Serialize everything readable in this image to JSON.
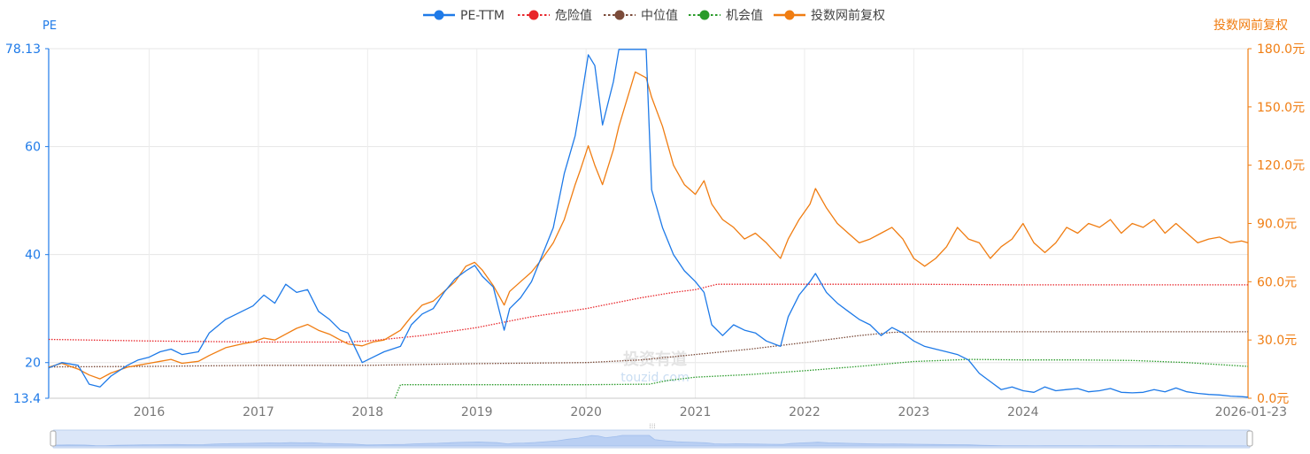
{
  "chart_data": {
    "type": "line",
    "title": "",
    "legend": {
      "placement": "top-center",
      "items": [
        {
          "name": "PE-TTM",
          "color": "#1e7ae8",
          "style": "solid"
        },
        {
          "name": "危险值",
          "color": "#e8262b",
          "style": "dotted"
        },
        {
          "name": "中位值",
          "color": "#7b4b3a",
          "style": "dotted"
        },
        {
          "name": "机会值",
          "color": "#2a9b2a",
          "style": "dotted"
        },
        {
          "name": "投数网前复权",
          "color": "#f07d12",
          "style": "solid"
        }
      ]
    },
    "y_left": {
      "label": "PE",
      "min": 13.4,
      "max": 78.13,
      "ticks": [
        {
          "value": 13.4,
          "label": "13.4"
        },
        {
          "value": 20,
          "label": "20"
        },
        {
          "value": 40,
          "label": "40"
        },
        {
          "value": 60,
          "label": "60"
        },
        {
          "value": 78.13,
          "label": "78.13"
        }
      ]
    },
    "y_right": {
      "label": "投数网前复权",
      "min": 0,
      "max": 180,
      "ticks": [
        {
          "value": 0,
          "label": "0.0元"
        },
        {
          "value": 30,
          "label": "30.0元"
        },
        {
          "value": 60,
          "label": "60.0元"
        },
        {
          "value": 90,
          "label": "90.0元"
        },
        {
          "value": 120,
          "label": "120.0元"
        },
        {
          "value": 150,
          "label": "150.0元"
        },
        {
          "value": 180,
          "label": "180.0元"
        }
      ]
    },
    "x_axis": {
      "min": 2015.08,
      "max": 2026.06,
      "ticks": [
        {
          "value": 2016,
          "label": "2016"
        },
        {
          "value": 2017,
          "label": "2017"
        },
        {
          "value": 2018,
          "label": "2018"
        },
        {
          "value": 2019,
          "label": "2019"
        },
        {
          "value": 2020,
          "label": "2020"
        },
        {
          "value": 2021,
          "label": "2021"
        },
        {
          "value": 2022,
          "label": "2022"
        },
        {
          "value": 2023,
          "label": "2023"
        },
        {
          "value": 2024,
          "label": "2024"
        },
        {
          "value": 2026.06,
          "label": "2026-01-23"
        }
      ]
    },
    "grid": true,
    "watermark": {
      "line1": "投资有道",
      "line2": "touzid.com"
    },
    "series": [
      {
        "name": "PE-TTM",
        "axis": "left",
        "x": [
          2015.08,
          2015.2,
          2015.35,
          2015.45,
          2015.55,
          2015.65,
          2015.8,
          2015.9,
          2016.0,
          2016.1,
          2016.2,
          2016.3,
          2016.45,
          2016.55,
          2016.7,
          2016.85,
          2016.95,
          2017.05,
          2017.15,
          2017.25,
          2017.35,
          2017.45,
          2017.55,
          2017.65,
          2017.75,
          2017.82,
          2017.95,
          2018.05,
          2018.15,
          2018.3,
          2018.4,
          2018.5,
          2018.6,
          2018.7,
          2018.8,
          2018.9,
          2018.98,
          2019.05,
          2019.15,
          2019.25,
          2019.3,
          2019.4,
          2019.5,
          2019.6,
          2019.7,
          2019.8,
          2019.9,
          2019.95,
          2020.02,
          2020.08,
          2020.15,
          2020.25,
          2020.3,
          2020.38,
          2020.45,
          2020.55,
          2020.6,
          2020.7,
          2020.8,
          2020.9,
          2021.0,
          2021.08,
          2021.15,
          2021.25,
          2021.35,
          2021.45,
          2021.55,
          2021.65,
          2021.78,
          2021.85,
          2021.95,
          2022.05,
          2022.1,
          2022.2,
          2022.3,
          2022.4,
          2022.5,
          2022.6,
          2022.7,
          2022.8,
          2022.9,
          2023.0,
          2023.1,
          2023.2,
          2023.3,
          2023.4,
          2023.5,
          2023.6,
          2023.7,
          2023.8,
          2023.9,
          2024.0,
          2024.1,
          2024.2,
          2024.3,
          2024.4,
          2024.5,
          2024.6,
          2024.7,
          2024.8,
          2024.9,
          2025.0,
          2025.1,
          2025.2,
          2025.3,
          2025.4,
          2025.5,
          2025.6,
          2025.7,
          2025.8,
          2025.9,
          2026.0,
          2026.06
        ],
        "y": [
          19.0,
          20.0,
          19.5,
          16.0,
          15.5,
          17.5,
          19.5,
          20.5,
          21.0,
          22.0,
          22.5,
          21.5,
          22.0,
          25.5,
          28.0,
          29.5,
          30.5,
          32.5,
          31.0,
          34.5,
          33.0,
          33.5,
          29.5,
          28.0,
          26.0,
          25.5,
          20.0,
          21.0,
          22.0,
          23.0,
          27.0,
          29.0,
          30.0,
          33.0,
          35.5,
          37.0,
          38.0,
          36.0,
          34.0,
          26.0,
          30.0,
          32.0,
          35.0,
          40.0,
          45.0,
          55.0,
          62.0,
          68.0,
          77.0,
          75.0,
          64.0,
          72.0,
          78.0,
          78.0,
          78.0,
          78.0,
          52.0,
          45.0,
          40.0,
          37.0,
          35.0,
          33.0,
          27.0,
          25.0,
          27.0,
          26.0,
          25.5,
          24.0,
          23.0,
          28.5,
          32.5,
          35.0,
          36.5,
          33.0,
          31.0,
          29.5,
          28.0,
          27.0,
          25.0,
          26.5,
          25.5,
          24.0,
          23.0,
          22.5,
          22.0,
          21.5,
          20.5,
          18.0,
          16.5,
          15.0,
          15.5,
          14.8,
          14.5,
          15.5,
          14.8,
          15.0,
          15.2,
          14.6,
          14.8,
          15.2,
          14.5,
          14.4,
          14.5,
          15.0,
          14.6,
          15.3,
          14.6,
          14.3,
          14.1,
          14.0,
          13.8,
          13.7,
          13.6
        ]
      },
      {
        "name": "投数网前复权",
        "axis": "right",
        "x": [
          2015.08,
          2015.2,
          2015.35,
          2015.45,
          2015.55,
          2015.65,
          2015.8,
          2015.9,
          2016.0,
          2016.1,
          2016.2,
          2016.3,
          2016.45,
          2016.55,
          2016.7,
          2016.85,
          2016.95,
          2017.05,
          2017.15,
          2017.25,
          2017.35,
          2017.45,
          2017.55,
          2017.65,
          2017.75,
          2017.82,
          2017.95,
          2018.05,
          2018.15,
          2018.3,
          2018.4,
          2018.5,
          2018.6,
          2018.7,
          2018.8,
          2018.9,
          2018.98,
          2019.05,
          2019.15,
          2019.25,
          2019.3,
          2019.4,
          2019.5,
          2019.6,
          2019.7,
          2019.8,
          2019.9,
          2019.95,
          2020.02,
          2020.08,
          2020.15,
          2020.25,
          2020.3,
          2020.38,
          2020.45,
          2020.55,
          2020.6,
          2020.7,
          2020.8,
          2020.9,
          2021.0,
          2021.08,
          2021.15,
          2021.25,
          2021.35,
          2021.45,
          2021.55,
          2021.65,
          2021.78,
          2021.85,
          2021.95,
          2022.05,
          2022.1,
          2022.2,
          2022.3,
          2022.4,
          2022.5,
          2022.6,
          2022.7,
          2022.8,
          2022.9,
          2023.0,
          2023.1,
          2023.2,
          2023.3,
          2023.4,
          2023.5,
          2023.6,
          2023.7,
          2023.8,
          2023.9,
          2024.0,
          2024.1,
          2024.2,
          2024.3,
          2024.4,
          2024.5,
          2024.6,
          2024.7,
          2024.8,
          2024.9,
          2025.0,
          2025.1,
          2025.2,
          2025.3,
          2025.4,
          2025.5,
          2025.6,
          2025.7,
          2025.8,
          2025.9,
          2026.0,
          2026.06
        ],
        "y": [
          16.0,
          18.0,
          15.0,
          12.0,
          10.0,
          13.0,
          16.0,
          17.0,
          18.0,
          19.0,
          20.0,
          18.0,
          19.0,
          22.0,
          26.0,
          28.0,
          29.0,
          31.0,
          30.0,
          33.0,
          36.0,
          38.0,
          35.0,
          33.0,
          30.0,
          28.0,
          27.0,
          29.0,
          30.0,
          35.0,
          42.0,
          48.0,
          50.0,
          55.0,
          60.0,
          68.0,
          70.0,
          66.0,
          58.0,
          48.0,
          55.0,
          60.0,
          65.0,
          72.0,
          80.0,
          92.0,
          110.0,
          118.0,
          130.0,
          120.0,
          110.0,
          128.0,
          140.0,
          155.0,
          168.0,
          165.0,
          155.0,
          140.0,
          120.0,
          110.0,
          105.0,
          112.0,
          100.0,
          92.0,
          88.0,
          82.0,
          85.0,
          80.0,
          72.0,
          82.0,
          92.0,
          100.0,
          108.0,
          98.0,
          90.0,
          85.0,
          80.0,
          82.0,
          85.0,
          88.0,
          82.0,
          72.0,
          68.0,
          72.0,
          78.0,
          88.0,
          82.0,
          80.0,
          72.0,
          78.0,
          82.0,
          90.0,
          80.0,
          75.0,
          80.0,
          88.0,
          85.0,
          90.0,
          88.0,
          92.0,
          85.0,
          90.0,
          88.0,
          92.0,
          85.0,
          90.0,
          85.0,
          80.0,
          82.0,
          83.0,
          80.0,
          81.0,
          80.0
        ]
      },
      {
        "name": "危险值",
        "axis": "left",
        "x": [
          2015.08,
          2016.0,
          2017.0,
          2017.8,
          2018.0,
          2018.5,
          2019.0,
          2019.5,
          2020.0,
          2020.5,
          2020.8,
          2021.0,
          2021.2,
          2022.0,
          2023.0,
          2024.0,
          2025.0,
          2026.06
        ],
        "y": [
          24.3,
          24.0,
          23.8,
          23.8,
          24.0,
          25.0,
          26.5,
          28.5,
          30.0,
          32.0,
          33.0,
          33.5,
          34.5,
          34.5,
          34.5,
          34.4,
          34.4,
          34.4
        ]
      },
      {
        "name": "中位值",
        "axis": "left",
        "x": [
          2015.08,
          2016.0,
          2017.0,
          2018.0,
          2019.0,
          2020.0,
          2020.5,
          2021.0,
          2021.5,
          2022.0,
          2022.5,
          2022.8,
          2023.0,
          2024.0,
          2025.0,
          2026.06
        ],
        "y": [
          19.2,
          19.3,
          19.5,
          19.5,
          19.8,
          20.0,
          20.5,
          21.5,
          22.5,
          23.7,
          25.0,
          25.6,
          25.7,
          25.7,
          25.7,
          25.7
        ]
      },
      {
        "name": "机会值",
        "axis": "left",
        "x": [
          2018.25,
          2018.3,
          2019.0,
          2020.0,
          2020.58,
          2020.75,
          2021.0,
          2021.5,
          2022.0,
          2022.5,
          2023.0,
          2023.5,
          2024.0,
          2024.5,
          2025.0,
          2025.5,
          2026.06
        ],
        "y": [
          13.4,
          15.9,
          15.9,
          15.9,
          16.0,
          16.7,
          17.3,
          17.8,
          18.5,
          19.3,
          20.2,
          20.6,
          20.5,
          20.5,
          20.4,
          20.0,
          19.3
        ]
      }
    ]
  }
}
